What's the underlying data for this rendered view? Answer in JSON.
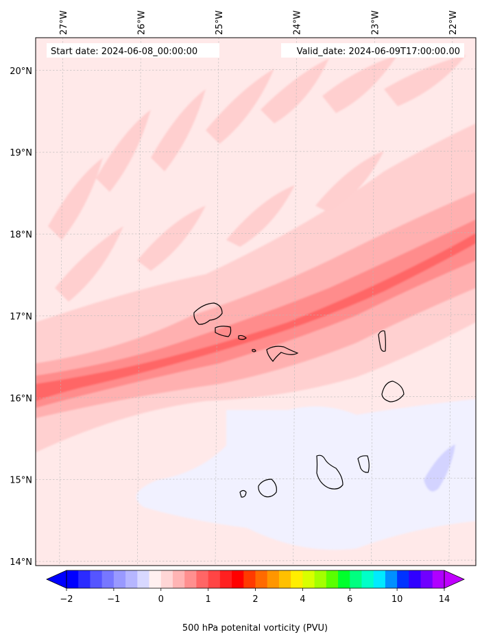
{
  "chart_data": {
    "type": "heatmap",
    "title": "",
    "annotations": {
      "start_date": "Start date: 2024-06-08_00:00:00",
      "valid_date": "Valid_date: 2024-06-09T17:00:00.00"
    },
    "x_axis": {
      "label": "",
      "position": "top",
      "range": [
        -27.35,
        -21.7
      ],
      "ticks": [
        -27,
        -26,
        -25,
        -24,
        -23,
        -22
      ],
      "tick_labels": [
        "27°W",
        "26°W",
        "25°W",
        "24°W",
        "23°W",
        "22°W"
      ]
    },
    "y_axis": {
      "label": "",
      "position": "left",
      "range": [
        13.95,
        20.4
      ],
      "ticks": [
        14,
        15,
        16,
        17,
        18,
        19,
        20
      ],
      "tick_labels": [
        "14°N",
        "15°N",
        "16°N",
        "17°N",
        "18°N",
        "19°N",
        "20°N"
      ]
    },
    "grid": true,
    "colorbar": {
      "label": "500 hPa potenital vorticity (PVU)",
      "orientation": "horizontal",
      "placement": "bottom",
      "extend": "both",
      "tick_values": [
        -2,
        -1,
        0,
        1,
        2,
        4,
        6,
        10,
        14
      ],
      "tick_labels": [
        "−2",
        "−1",
        "0",
        "1",
        "2",
        "4",
        "6",
        "10",
        "14"
      ],
      "colors": [
        "#0000ff",
        "#2b2bff",
        "#5555ff",
        "#7777ff",
        "#9999ff",
        "#b6b6ff",
        "#d8d8ff",
        "#fff0f0",
        "#ffd6d6",
        "#ffb4b4",
        "#ff8f8f",
        "#ff6666",
        "#ff4545",
        "#ff2020",
        "#ff0000",
        "#ff3a00",
        "#ff6a00",
        "#ff9600",
        "#ffc000",
        "#ffee00",
        "#d8ff00",
        "#a4ff00",
        "#5aff00",
        "#00ff2c",
        "#00ff80",
        "#00ffc8",
        "#00eaff",
        "#0090ff",
        "#0033ff",
        "#3000ff",
        "#7000ff",
        "#b000ff"
      ],
      "under_color": "#0000ff",
      "over_color": "#c000ff"
    },
    "field_features": [
      {
        "name": "pv band",
        "value_range": [
          1,
          2
        ],
        "trend": "rises from 16.0°N at 27.3°W to 18.0°N at 21.7°W"
      },
      {
        "name": "background",
        "value_range": [
          0,
          0.5
        ]
      },
      {
        "name": "negative pv region",
        "value_range": [
          -0.5,
          0
        ],
        "extent": "south-east, 14.2°N–15.9°N"
      }
    ],
    "coastlines": [
      "Santo Antão",
      "São Vicente",
      "Santa Luzia",
      "São Nicolau",
      "Sal",
      "Boa Vista",
      "Maio",
      "Santiago",
      "Fogo",
      "Brava"
    ]
  }
}
